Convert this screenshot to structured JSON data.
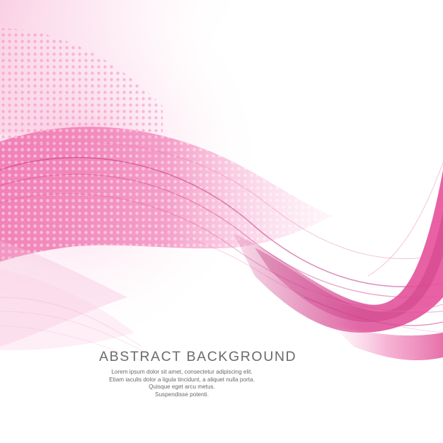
{
  "poster": {
    "headline": "ABSTRACT BACKGROUND",
    "body_lines": [
      "Lorem ipsum dolor sit amet, consectetur adipiscing elit.",
      "Etiam iaculis dolor a ligula tincidunt, a aliquet nulla porta.",
      "Quisque eget arcu metus.",
      "Suspendisse potenti."
    ]
  },
  "colors": {
    "background": "#ffffff",
    "wave_primary": "#e8589f",
    "wave_deep": "#c2307c",
    "wave_light": "#f6a9cd",
    "text": "#6b6b6b"
  }
}
